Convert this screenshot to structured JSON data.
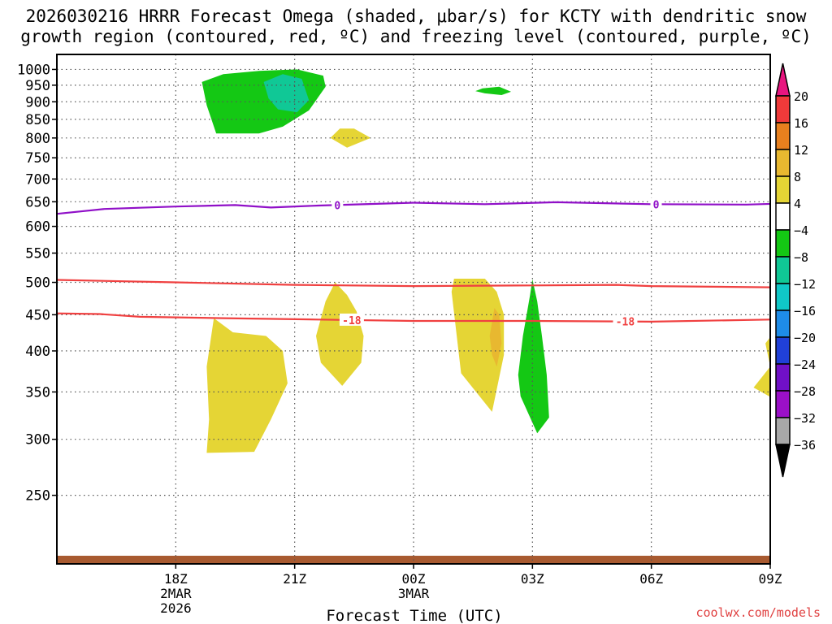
{
  "title_line1": "2026030216 HRRR Forecast Omega (shaded, μbar/s) for KCTY with dendritic snow",
  "title_line2": "growth region (contoured, red, ºC) and freezing level (contoured, purple, ºC)",
  "credit": "coolwx.com/models",
  "chart_data": {
    "type": "time-height cross section",
    "xlabel": "Forecast Time (UTC)",
    "x_range_hours": [
      -5,
      25
    ],
    "x_ticks": [
      {
        "hour": 0,
        "lines": [
          "18Z",
          "2MAR",
          "2026"
        ]
      },
      {
        "hour": 5,
        "lines": [
          "21Z"
        ]
      },
      {
        "hour": 10,
        "lines": [
          "00Z",
          "3MAR"
        ]
      },
      {
        "hour": 15,
        "lines": [
          "03Z"
        ]
      },
      {
        "hour": 20,
        "lines": [
          "06Z"
        ]
      },
      {
        "hour": 25,
        "lines": [
          "09Z"
        ]
      }
    ],
    "y_axis": "pressure (hPa, log scale, inverted)",
    "y_range": [
      1050,
      200
    ],
    "y_ticks": [
      250,
      300,
      350,
      400,
      450,
      500,
      550,
      600,
      650,
      700,
      750,
      800,
      850,
      900,
      950,
      1000
    ],
    "grid": true,
    "colorbar": {
      "labels": [
        "20",
        "16",
        "12",
        "8",
        "4",
        "−4",
        "−8",
        "−12",
        "−16",
        "−20",
        "−24",
        "−28",
        "−32",
        "−36"
      ],
      "colors": [
        "#e8157f",
        "#f03a3a",
        "#e8801e",
        "#e8b830",
        "#e5d535",
        "#ffffff",
        "#14c814",
        "#10c896",
        "#10c8c8",
        "#1e8ce8",
        "#2040d8",
        "#7010c8",
        "#9b10c8",
        "#a8a8a8",
        "#000000"
      ]
    },
    "contours": [
      {
        "name": "-18",
        "label": "-18",
        "color": "#f04040",
        "label_hours": [
          7.4,
          18.9
        ],
        "points": [
          [
            -5,
            452
          ],
          [
            -3.2,
            451
          ],
          [
            -1.5,
            447
          ],
          [
            2,
            445
          ],
          [
            6,
            443
          ],
          [
            10,
            441
          ],
          [
            15,
            441
          ],
          [
            20,
            440
          ],
          [
            25,
            443
          ],
          [
            28,
            443
          ]
        ]
      },
      {
        "name": "-12",
        "label": "",
        "color": "#f04040",
        "label_hours": [],
        "points": [
          [
            -5,
            504
          ],
          [
            0,
            500
          ],
          [
            5,
            496
          ],
          [
            10,
            494
          ],
          [
            15,
            495
          ],
          [
            18.5,
            496
          ],
          [
            20,
            494
          ],
          [
            25,
            492
          ],
          [
            28,
            490
          ]
        ]
      },
      {
        "name": "0",
        "label": "0",
        "color": "#9010c8",
        "label_hours": [
          6.8,
          20.2
        ],
        "points": [
          [
            -5,
            625
          ],
          [
            -3,
            635
          ],
          [
            0,
            640
          ],
          [
            2.5,
            643
          ],
          [
            4,
            638
          ],
          [
            6,
            642
          ],
          [
            10,
            648
          ],
          [
            13,
            645
          ],
          [
            16,
            649
          ],
          [
            20,
            645
          ],
          [
            24,
            644
          ],
          [
            28,
            650
          ]
        ]
      }
    ],
    "omega_regions": [
      {
        "value_class": "4 to 8",
        "color": "#e5d535",
        "points": [
          [
            1.3,
            287
          ],
          [
            3.3,
            288
          ],
          [
            4,
            320
          ],
          [
            4.7,
            360
          ],
          [
            4.5,
            400
          ],
          [
            3.8,
            420
          ],
          [
            2.4,
            425
          ],
          [
            1.6,
            445
          ],
          [
            1.3,
            380
          ],
          [
            1.4,
            320
          ]
        ]
      },
      {
        "value_class": "4 to 8",
        "color": "#e5d535",
        "points": [
          [
            6.1,
            385
          ],
          [
            7,
            357
          ],
          [
            7.8,
            385
          ],
          [
            7.9,
            420
          ],
          [
            7.6,
            455
          ],
          [
            7.2,
            480
          ],
          [
            6.7,
            500
          ],
          [
            6.3,
            470
          ],
          [
            5.9,
            420
          ]
        ]
      },
      {
        "value_class": "4 to 8",
        "color": "#e5d535",
        "points": [
          [
            12,
            372
          ],
          [
            13.3,
            328
          ],
          [
            13.8,
            395
          ],
          [
            13.8,
            450
          ],
          [
            13.5,
            485
          ],
          [
            13,
            506
          ],
          [
            11.7,
            506
          ],
          [
            11.6,
            485
          ]
        ]
      },
      {
        "value_class": "8 to 12",
        "color": "#e8b830",
        "points": [
          [
            13.3,
            395
          ],
          [
            13.5,
            380
          ],
          [
            13.7,
            410
          ],
          [
            13.6,
            450
          ],
          [
            13.4,
            460
          ],
          [
            13.2,
            420
          ]
        ]
      },
      {
        "value_class": "4 to 8",
        "color": "#e5d535",
        "points": [
          [
            24.3,
            355
          ],
          [
            25.3,
            340
          ],
          [
            25.9,
            334
          ],
          [
            25.9,
            445
          ],
          [
            25.5,
            440
          ],
          [
            24.8,
            410
          ],
          [
            25,
            380
          ]
        ]
      },
      {
        "value_class": "4 to 8",
        "color": "#e5d535",
        "points": [
          [
            6.5,
            800
          ],
          [
            7.2,
            775
          ],
          [
            8.2,
            800
          ],
          [
            7.5,
            825
          ],
          [
            6.9,
            825
          ]
        ]
      },
      {
        "value_class": "-8 to -4",
        "color": "#14c814",
        "points": [
          [
            14.5,
            345
          ],
          [
            15.2,
            306
          ],
          [
            15.7,
            322
          ],
          [
            15.6,
            370
          ],
          [
            15.4,
            420
          ],
          [
            15.2,
            470
          ],
          [
            15,
            505
          ],
          [
            14.9,
            480
          ],
          [
            14.6,
            420
          ],
          [
            14.4,
            370
          ]
        ]
      },
      {
        "value_class": "-8 to -4",
        "color": "#14c814",
        "points": [
          [
            1.7,
            812
          ],
          [
            3.5,
            812
          ],
          [
            4.5,
            830
          ],
          [
            5.6,
            875
          ],
          [
            6.3,
            945
          ],
          [
            6.2,
            980
          ],
          [
            5.1,
            1000
          ],
          [
            3.5,
            995
          ],
          [
            2,
            985
          ],
          [
            1.1,
            960
          ],
          [
            1.3,
            890
          ]
        ]
      },
      {
        "value_class": "-12 to -8",
        "color": "#10c896",
        "points": [
          [
            3.9,
            910
          ],
          [
            4.3,
            878
          ],
          [
            5.1,
            870
          ],
          [
            5.6,
            905
          ],
          [
            5.3,
            970
          ],
          [
            4.5,
            985
          ],
          [
            3.7,
            960
          ]
        ]
      },
      {
        "value_class": "-8 to -4",
        "color": "#14c814",
        "points": [
          [
            12.6,
            932
          ],
          [
            13,
            925
          ],
          [
            13.7,
            920
          ],
          [
            14.1,
            930
          ],
          [
            13.6,
            945
          ],
          [
            12.9,
            940
          ]
        ]
      }
    ],
    "surface_fill": {
      "color": "#a85a30",
      "from_pressure": 1050
    }
  }
}
